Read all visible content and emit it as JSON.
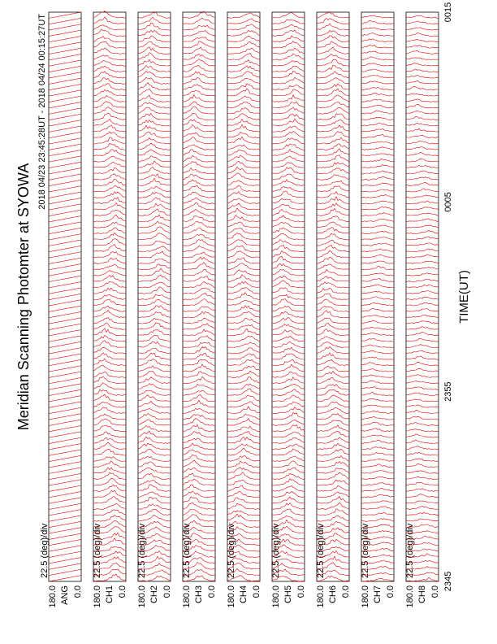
{
  "chart_data": {
    "type": "line",
    "title": "Meridian Scanning Photomter at SYOWA",
    "subtitle": "2018 04/23 23:45:28UT - 2018 04/24 00:15:27UT",
    "x_label": "TIME(UT)",
    "xticks": [
      "2345",
      "2355",
      "0005",
      "0015"
    ],
    "color": "#e00000",
    "panels": [
      {
        "label": "ANG",
        "top": "180.0",
        "bottom": "0.0",
        "scale": "22.5 (deg)/div"
      },
      {
        "label": "CH1",
        "top": "180.0",
        "bottom": "0.0",
        "scale": "22.5 (deg)/div"
      },
      {
        "label": "CH2",
        "top": "180.0",
        "bottom": "0.0",
        "scale": "22.5 (deg)/div"
      },
      {
        "label": "CH3",
        "top": "180.0",
        "bottom": "0.0",
        "scale": "22.5 (deg)/div"
      },
      {
        "label": "CH4",
        "top": "180.0",
        "bottom": "0.0",
        "scale": "22.5 (deg)/div"
      },
      {
        "label": "CH5",
        "top": "180.0",
        "bottom": "0.0",
        "scale": "22.5 (deg)/div"
      },
      {
        "label": "CH6",
        "top": "180.0",
        "bottom": "0.0",
        "scale": "22.5 (deg)/div"
      },
      {
        "label": "CH7",
        "top": "180.0",
        "bottom": "0.0",
        "scale": "22.5 (deg)/div"
      },
      {
        "label": "CH8",
        "top": "180.0",
        "bottom": "0.0",
        "scale": "22.5 (deg)/div"
      }
    ]
  }
}
